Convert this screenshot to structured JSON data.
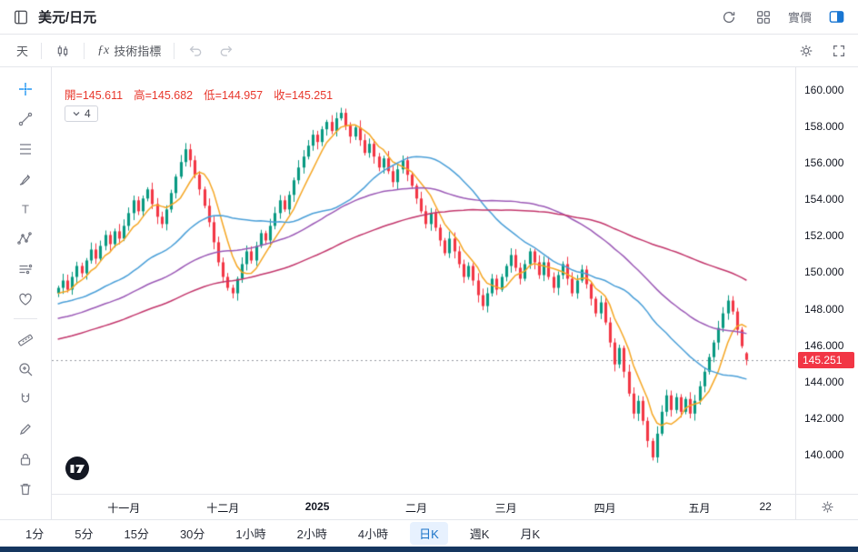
{
  "header": {
    "title": "美元/日元",
    "quote_label": "實價"
  },
  "toolbar": {
    "interval_label": "天",
    "fx_glyph": "ƒx",
    "indicators_label": "技術指標"
  },
  "legend": {
    "open_label": "開",
    "high_label": "高",
    "low_label": "低",
    "close_label": "收",
    "open": "145.611",
    "high": "145.682",
    "low": "144.957",
    "close": "145.251",
    "collapsed_count": "4"
  },
  "intervals": {
    "items": [
      "1分",
      "5分",
      "15分",
      "30分",
      "1小時",
      "2小時",
      "4小時",
      "日K",
      "週K",
      "月K"
    ],
    "active": "日K"
  },
  "chart_data": {
    "type": "candlestick",
    "title": "USD/JPY (美元/日元) daily candles with moving averages",
    "interval": "1D",
    "last": {
      "open": 145.611,
      "high": 145.682,
      "low": 144.957,
      "close": 145.251
    },
    "closes": [
      149.2,
      149.6,
      149.1,
      149.8,
      150.4,
      150.0,
      150.7,
      151.3,
      150.8,
      151.5,
      152.1,
      151.6,
      152.3,
      151.9,
      152.6,
      153.3,
      154.0,
      153.4,
      154.1,
      154.6,
      153.8,
      153.1,
      152.7,
      153.5,
      154.4,
      155.3,
      156.1,
      156.8,
      156.2,
      155.4,
      154.6,
      153.7,
      152.8,
      151.7,
      150.6,
      149.8,
      149.2,
      148.9,
      149.7,
      150.5,
      151.2,
      150.7,
      151.5,
      152.2,
      151.8,
      152.6,
      153.3,
      154.0,
      153.5,
      154.3,
      155.1,
      155.8,
      156.4,
      157.0,
      157.6,
      157.2,
      157.9,
      158.3,
      157.8,
      158.5,
      158.8,
      158.1,
      157.5,
      158.0,
      157.3,
      156.6,
      157.1,
      156.4,
      155.8,
      156.3,
      155.6,
      155.0,
      155.7,
      156.2,
      155.4,
      154.8,
      154.1,
      153.4,
      152.7,
      153.3,
      152.5,
      151.8,
      151.1,
      151.9,
      151.2,
      150.5,
      149.8,
      150.4,
      149.6,
      148.8,
      148.2,
      148.9,
      149.7,
      149.1,
      149.8,
      150.4,
      151.0,
      150.3,
      149.7,
      150.5,
      151.2,
      150.6,
      149.9,
      150.6,
      149.8,
      149.2,
      149.9,
      150.5,
      149.7,
      148.9,
      149.6,
      150.2,
      149.4,
      148.6,
      147.8,
      148.4,
      147.3,
      146.2,
      145.0,
      145.9,
      144.6,
      143.4,
      142.3,
      143.0,
      141.9,
      140.8,
      139.9,
      141.2,
      142.4,
      143.3,
      142.5,
      143.2,
      142.4,
      143.1,
      142.3,
      143.0,
      143.8,
      144.6,
      145.4,
      146.2,
      147.0,
      147.8,
      148.5,
      147.9,
      146.9,
      146.0,
      145.251
    ],
    "prehistory": {
      "start": 142.8,
      "end": 149.2,
      "count": 100,
      "wave_amp": 0.5,
      "wave_period": 9
    },
    "moving_averages": [
      {
        "name": "MA7",
        "period": 7,
        "color": "#f5a623"
      },
      {
        "name": "MA30",
        "period": 30,
        "color": "#4a9fd8"
      },
      {
        "name": "MA55",
        "period": 55,
        "color": "#9b59b6"
      },
      {
        "name": "MA90",
        "period": 90,
        "color": "#c2356b"
      }
    ],
    "price_axis": {
      "label_min": 140,
      "label_max": 160,
      "label_step": 2,
      "top_price": 161.3,
      "bottom_price": 137.9,
      "decimals": 3
    },
    "time_axis": [
      {
        "label": "十一月",
        "index": 14
      },
      {
        "label": "十二月",
        "index": 35
      },
      {
        "label": "2025",
        "index": 55,
        "bold": true
      },
      {
        "label": "二月",
        "index": 76
      },
      {
        "label": "三月",
        "index": 95
      },
      {
        "label": "四月",
        "index": 116
      },
      {
        "label": "五月",
        "index": 136
      },
      {
        "label": "22",
        "index": 150
      }
    ],
    "colors": {
      "up": "#089981",
      "down": "#f23645",
      "legend_text": "#e8372c",
      "last_price_line": "#9598a1",
      "price_tag_bg": "#f23645",
      "price_tag_text": "#ffffff",
      "accent_blue": "#1a73c8"
    }
  }
}
